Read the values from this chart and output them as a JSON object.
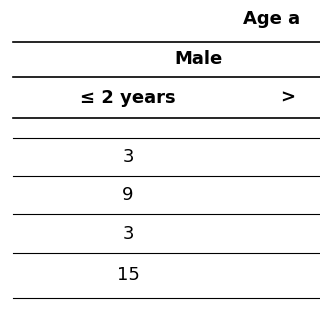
{
  "title": "Age a",
  "col_header_1": "Male",
  "col_header_2a": "≤ 2 years",
  "col_header_2b": ">",
  "data_col1": [
    "3",
    "9",
    "3",
    "15"
  ],
  "background_color": "#ffffff",
  "line_color": "#000000",
  "font_color": "#000000",
  "bold_fontsize": 13,
  "data_fontsize": 13,
  "fig_width": 3.2,
  "fig_height": 3.2
}
